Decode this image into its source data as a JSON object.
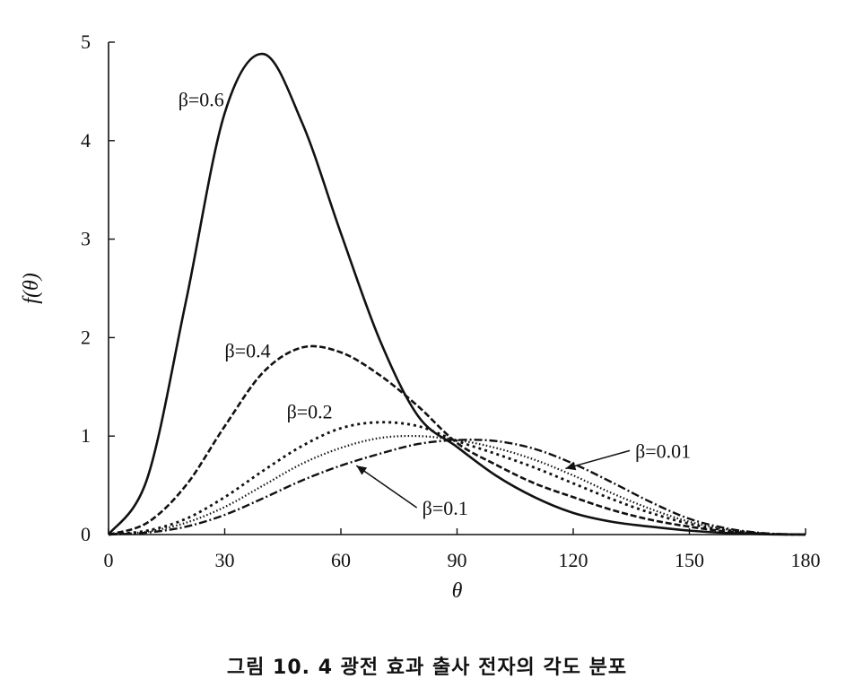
{
  "chart_data": {
    "type": "line",
    "xlabel": "θ",
    "ylabel": "f(θ)",
    "xlim": [
      0,
      180
    ],
    "ylim": [
      0,
      5
    ],
    "xticks": [
      0,
      30,
      60,
      90,
      120,
      150,
      180
    ],
    "yticks": [
      0,
      1,
      2,
      3,
      4,
      5
    ],
    "grid": false,
    "x": [
      0,
      10,
      20,
      30,
      40,
      50,
      60,
      70,
      80,
      90,
      100,
      110,
      120,
      130,
      140,
      150,
      160,
      170,
      180
    ],
    "series": [
      {
        "name": "β=0.6",
        "style": "solid",
        "values": [
          0,
          0.57,
          2.37,
          4.28,
          4.88,
          4.18,
          3.06,
          1.98,
          1.2,
          0.89,
          0.6,
          0.38,
          0.22,
          0.13,
          0.08,
          0.04,
          0.015,
          0.003,
          0
        ]
      },
      {
        "name": "β=0.4",
        "style": "dashed",
        "values": [
          0,
          0.12,
          0.5,
          1.1,
          1.65,
          1.9,
          1.85,
          1.62,
          1.3,
          0.93,
          0.71,
          0.52,
          0.38,
          0.25,
          0.15,
          0.08,
          0.03,
          0.006,
          0
        ]
      },
      {
        "name": "β=0.2",
        "style": "dotted",
        "values": [
          0,
          0.04,
          0.16,
          0.38,
          0.65,
          0.9,
          1.08,
          1.14,
          1.1,
          0.95,
          0.82,
          0.68,
          0.52,
          0.36,
          0.22,
          0.11,
          0.04,
          0.008,
          0
        ]
      },
      {
        "name": "β=0.1",
        "style": "fine-dotted",
        "values": [
          0,
          0.03,
          0.12,
          0.28,
          0.5,
          0.72,
          0.88,
          0.98,
          1.0,
          0.96,
          0.88,
          0.76,
          0.6,
          0.42,
          0.26,
          0.13,
          0.05,
          0.01,
          0
        ]
      },
      {
        "name": "β=0.01",
        "style": "dash-dot",
        "values": [
          0,
          0.02,
          0.08,
          0.2,
          0.37,
          0.55,
          0.7,
          0.82,
          0.92,
          0.96,
          0.95,
          0.87,
          0.72,
          0.53,
          0.33,
          0.16,
          0.06,
          0.012,
          0
        ]
      }
    ],
    "annotations": [
      {
        "text": "β=0.6",
        "series": "β=0.6",
        "x": 18,
        "y": 4.35
      },
      {
        "text": "β=0.4",
        "series": "β=0.4",
        "x": 30,
        "y": 1.8
      },
      {
        "text": "β=0.2",
        "series": "β=0.2",
        "x": 46,
        "y": 1.18
      },
      {
        "text": "β=0.1",
        "series": "β=0.1",
        "x": 81,
        "y": 0.2,
        "arrow_to": [
          64,
          0.7
        ]
      },
      {
        "text": "β=0.01",
        "series": "β=0.01",
        "x": 136,
        "y": 0.78,
        "arrow_to": [
          118,
          0.67
        ]
      }
    ]
  },
  "caption": "그림 10. 4  광전 효과 출사 전자의 각도 분포"
}
